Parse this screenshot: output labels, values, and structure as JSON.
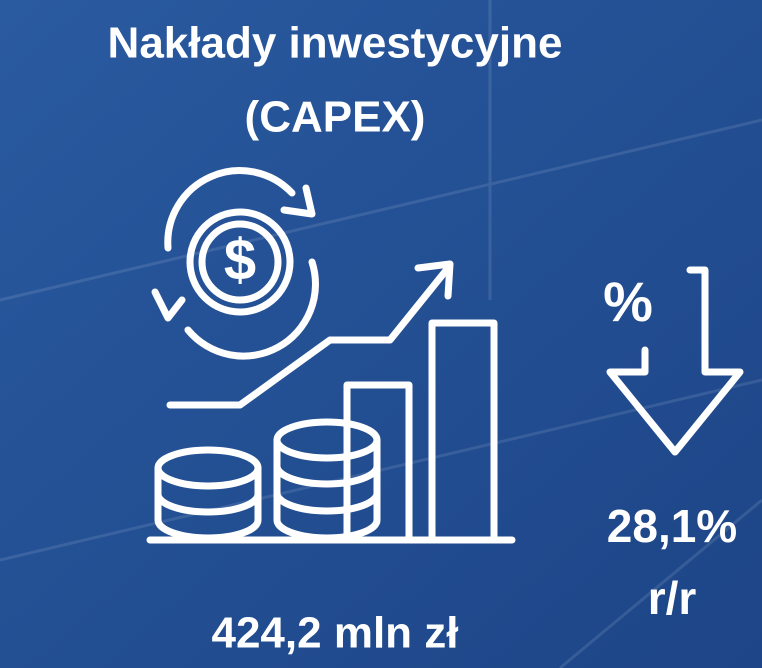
{
  "header": {
    "title": "Nakłady inwestycyjne",
    "subtitle": "(CAPEX)"
  },
  "icons": {
    "dollar": "$",
    "percent": "%"
  },
  "metrics": {
    "capex": "424,2 mln zł",
    "change": "28,1%",
    "change_period": "r/r"
  }
}
